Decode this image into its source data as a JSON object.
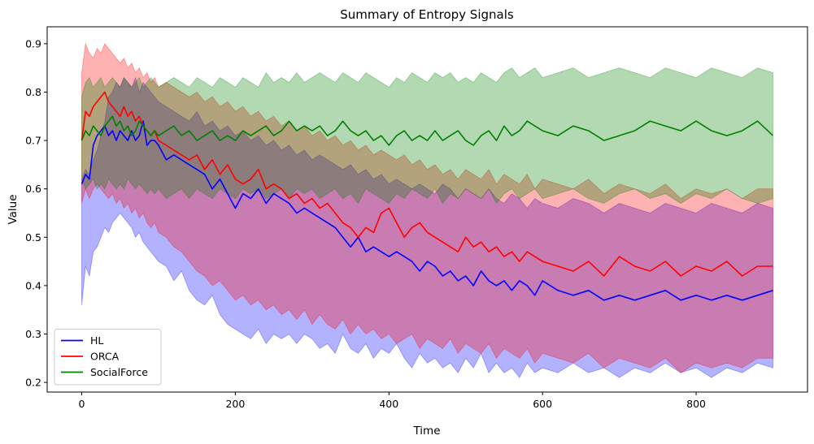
{
  "chart_data": {
    "type": "line",
    "title": "Summary of Entropy Signals",
    "xlabel": "Time",
    "ylabel": "Value",
    "xlim": [
      -45,
      945
    ],
    "ylim": [
      0.18,
      0.935
    ],
    "xticks": [
      0,
      200,
      400,
      600,
      800
    ],
    "yticks": [
      0.2,
      0.3,
      0.4,
      0.5,
      0.6,
      0.7,
      0.8,
      0.9
    ],
    "legend_position": "lower-left",
    "grid": false,
    "series": [
      {
        "name": "HL",
        "color": "#0000ff",
        "x": [
          0,
          5,
          10,
          15,
          20,
          25,
          30,
          35,
          40,
          45,
          50,
          55,
          60,
          65,
          70,
          75,
          80,
          85,
          90,
          95,
          100,
          110,
          120,
          130,
          140,
          150,
          160,
          170,
          180,
          190,
          200,
          210,
          220,
          230,
          240,
          250,
          260,
          270,
          280,
          290,
          300,
          310,
          320,
          330,
          340,
          350,
          360,
          370,
          380,
          390,
          400,
          410,
          420,
          430,
          440,
          450,
          460,
          470,
          480,
          490,
          500,
          510,
          520,
          530,
          540,
          550,
          560,
          570,
          580,
          590,
          600,
          620,
          640,
          660,
          680,
          700,
          720,
          740,
          760,
          780,
          800,
          820,
          840,
          860,
          880,
          900
        ],
        "mean": [
          0.61,
          0.63,
          0.62,
          0.69,
          0.71,
          0.72,
          0.73,
          0.71,
          0.72,
          0.7,
          0.72,
          0.71,
          0.7,
          0.72,
          0.7,
          0.71,
          0.74,
          0.69,
          0.7,
          0.7,
          0.69,
          0.66,
          0.67,
          0.66,
          0.65,
          0.64,
          0.63,
          0.6,
          0.62,
          0.59,
          0.56,
          0.59,
          0.58,
          0.6,
          0.57,
          0.59,
          0.58,
          0.57,
          0.55,
          0.56,
          0.55,
          0.54,
          0.53,
          0.52,
          0.5,
          0.48,
          0.5,
          0.47,
          0.48,
          0.47,
          0.46,
          0.47,
          0.46,
          0.45,
          0.43,
          0.45,
          0.44,
          0.42,
          0.43,
          0.41,
          0.42,
          0.4,
          0.43,
          0.41,
          0.4,
          0.41,
          0.39,
          0.41,
          0.4,
          0.38,
          0.41,
          0.39,
          0.38,
          0.39,
          0.37,
          0.38,
          0.37,
          0.38,
          0.39,
          0.37,
          0.38,
          0.37,
          0.38,
          0.37,
          0.38,
          0.39
        ],
        "lower": [
          0.36,
          0.44,
          0.42,
          0.47,
          0.48,
          0.5,
          0.52,
          0.51,
          0.53,
          0.54,
          0.55,
          0.54,
          0.53,
          0.52,
          0.5,
          0.51,
          0.49,
          0.48,
          0.47,
          0.46,
          0.45,
          0.44,
          0.41,
          0.43,
          0.39,
          0.37,
          0.36,
          0.38,
          0.34,
          0.32,
          0.31,
          0.3,
          0.29,
          0.31,
          0.28,
          0.3,
          0.29,
          0.3,
          0.28,
          0.3,
          0.29,
          0.27,
          0.28,
          0.26,
          0.3,
          0.27,
          0.26,
          0.28,
          0.25,
          0.27,
          0.26,
          0.28,
          0.25,
          0.23,
          0.26,
          0.24,
          0.25,
          0.23,
          0.24,
          0.22,
          0.25,
          0.23,
          0.26,
          0.22,
          0.24,
          0.22,
          0.23,
          0.21,
          0.24,
          0.22,
          0.23,
          0.22,
          0.24,
          0.22,
          0.23,
          0.21,
          0.23,
          0.22,
          0.24,
          0.22,
          0.23,
          0.21,
          0.23,
          0.22,
          0.24,
          0.23
        ],
        "upper": [
          0.62,
          0.64,
          0.63,
          0.66,
          0.68,
          0.71,
          0.74,
          0.79,
          0.8,
          0.82,
          0.81,
          0.83,
          0.82,
          0.81,
          0.83,
          0.8,
          0.82,
          0.81,
          0.8,
          0.79,
          0.78,
          0.77,
          0.76,
          0.75,
          0.74,
          0.76,
          0.73,
          0.74,
          0.72,
          0.73,
          0.71,
          0.72,
          0.7,
          0.71,
          0.69,
          0.7,
          0.68,
          0.69,
          0.67,
          0.68,
          0.66,
          0.67,
          0.66,
          0.65,
          0.64,
          0.65,
          0.63,
          0.64,
          0.62,
          0.63,
          0.61,
          0.62,
          0.61,
          0.6,
          0.61,
          0.6,
          0.59,
          0.61,
          0.6,
          0.58,
          0.6,
          0.59,
          0.58,
          0.6,
          0.58,
          0.57,
          0.59,
          0.58,
          0.56,
          0.58,
          0.57,
          0.56,
          0.58,
          0.57,
          0.55,
          0.57,
          0.56,
          0.55,
          0.57,
          0.56,
          0.55,
          0.57,
          0.56,
          0.55,
          0.57,
          0.56
        ]
      },
      {
        "name": "ORCA",
        "color": "#ff0000",
        "x": [
          0,
          5,
          10,
          15,
          20,
          25,
          30,
          35,
          40,
          45,
          50,
          55,
          60,
          65,
          70,
          75,
          80,
          85,
          90,
          95,
          100,
          110,
          120,
          130,
          140,
          150,
          160,
          170,
          180,
          190,
          200,
          210,
          220,
          230,
          240,
          250,
          260,
          270,
          280,
          290,
          300,
          310,
          320,
          330,
          340,
          350,
          360,
          370,
          380,
          390,
          400,
          410,
          420,
          430,
          440,
          450,
          460,
          470,
          480,
          490,
          500,
          510,
          520,
          530,
          540,
          550,
          560,
          570,
          580,
          590,
          600,
          620,
          640,
          660,
          680,
          700,
          720,
          740,
          760,
          780,
          800,
          820,
          840,
          860,
          880,
          900
        ],
        "mean": [
          0.7,
          0.76,
          0.75,
          0.77,
          0.78,
          0.79,
          0.8,
          0.78,
          0.77,
          0.76,
          0.75,
          0.77,
          0.75,
          0.76,
          0.74,
          0.75,
          0.73,
          0.72,
          0.71,
          0.72,
          0.7,
          0.69,
          0.68,
          0.67,
          0.66,
          0.67,
          0.64,
          0.66,
          0.63,
          0.65,
          0.62,
          0.61,
          0.62,
          0.64,
          0.6,
          0.61,
          0.6,
          0.58,
          0.59,
          0.57,
          0.58,
          0.56,
          0.57,
          0.55,
          0.53,
          0.52,
          0.5,
          0.52,
          0.51,
          0.55,
          0.56,
          0.53,
          0.5,
          0.52,
          0.53,
          0.51,
          0.5,
          0.49,
          0.48,
          0.47,
          0.5,
          0.48,
          0.49,
          0.47,
          0.48,
          0.46,
          0.47,
          0.45,
          0.47,
          0.46,
          0.45,
          0.44,
          0.43,
          0.45,
          0.42,
          0.46,
          0.44,
          0.43,
          0.45,
          0.42,
          0.44,
          0.43,
          0.45,
          0.42,
          0.44,
          0.44
        ],
        "lower": [
          0.57,
          0.6,
          0.58,
          0.6,
          0.61,
          0.6,
          0.59,
          0.58,
          0.59,
          0.57,
          0.58,
          0.56,
          0.57,
          0.55,
          0.56,
          0.54,
          0.55,
          0.53,
          0.52,
          0.53,
          0.51,
          0.5,
          0.48,
          0.47,
          0.45,
          0.43,
          0.42,
          0.4,
          0.41,
          0.39,
          0.37,
          0.38,
          0.36,
          0.37,
          0.35,
          0.36,
          0.34,
          0.35,
          0.33,
          0.35,
          0.32,
          0.34,
          0.32,
          0.31,
          0.33,
          0.3,
          0.32,
          0.3,
          0.31,
          0.29,
          0.3,
          0.28,
          0.29,
          0.3,
          0.27,
          0.29,
          0.28,
          0.27,
          0.29,
          0.26,
          0.28,
          0.27,
          0.26,
          0.28,
          0.25,
          0.27,
          0.26,
          0.25,
          0.27,
          0.24,
          0.26,
          0.25,
          0.24,
          0.26,
          0.23,
          0.25,
          0.24,
          0.23,
          0.25,
          0.22,
          0.24,
          0.23,
          0.24,
          0.23,
          0.25,
          0.25
        ],
        "upper": [
          0.84,
          0.9,
          0.88,
          0.87,
          0.89,
          0.88,
          0.9,
          0.89,
          0.88,
          0.87,
          0.86,
          0.87,
          0.85,
          0.86,
          0.84,
          0.85,
          0.83,
          0.84,
          0.82,
          0.83,
          0.81,
          0.82,
          0.81,
          0.8,
          0.79,
          0.8,
          0.78,
          0.79,
          0.77,
          0.78,
          0.76,
          0.77,
          0.75,
          0.76,
          0.74,
          0.75,
          0.73,
          0.74,
          0.72,
          0.73,
          0.71,
          0.72,
          0.7,
          0.71,
          0.69,
          0.7,
          0.68,
          0.69,
          0.67,
          0.68,
          0.67,
          0.66,
          0.67,
          0.65,
          0.66,
          0.64,
          0.65,
          0.63,
          0.64,
          0.62,
          0.64,
          0.63,
          0.62,
          0.64,
          0.61,
          0.63,
          0.62,
          0.61,
          0.63,
          0.6,
          0.62,
          0.61,
          0.6,
          0.62,
          0.59,
          0.61,
          0.6,
          0.59,
          0.61,
          0.58,
          0.6,
          0.59,
          0.6,
          0.58,
          0.6,
          0.6
        ]
      },
      {
        "name": "SocialForce",
        "color": "#008000",
        "x": [
          0,
          5,
          10,
          15,
          20,
          25,
          30,
          35,
          40,
          45,
          50,
          55,
          60,
          65,
          70,
          75,
          80,
          85,
          90,
          95,
          100,
          110,
          120,
          130,
          140,
          150,
          160,
          170,
          180,
          190,
          200,
          210,
          220,
          230,
          240,
          250,
          260,
          270,
          280,
          290,
          300,
          310,
          320,
          330,
          340,
          350,
          360,
          370,
          380,
          390,
          400,
          410,
          420,
          430,
          440,
          450,
          460,
          470,
          480,
          490,
          500,
          510,
          520,
          530,
          540,
          550,
          560,
          570,
          580,
          590,
          600,
          620,
          640,
          660,
          680,
          700,
          720,
          740,
          760,
          780,
          800,
          820,
          840,
          860,
          880,
          900
        ],
        "mean": [
          0.7,
          0.72,
          0.71,
          0.73,
          0.72,
          0.71,
          0.73,
          0.74,
          0.75,
          0.73,
          0.74,
          0.72,
          0.73,
          0.71,
          0.72,
          0.74,
          0.73,
          0.72,
          0.71,
          0.72,
          0.71,
          0.72,
          0.73,
          0.71,
          0.72,
          0.7,
          0.71,
          0.72,
          0.7,
          0.71,
          0.7,
          0.72,
          0.71,
          0.72,
          0.73,
          0.71,
          0.72,
          0.74,
          0.72,
          0.73,
          0.72,
          0.73,
          0.71,
          0.72,
          0.74,
          0.72,
          0.71,
          0.72,
          0.7,
          0.71,
          0.69,
          0.71,
          0.72,
          0.7,
          0.71,
          0.7,
          0.72,
          0.7,
          0.71,
          0.72,
          0.7,
          0.69,
          0.71,
          0.72,
          0.7,
          0.73,
          0.71,
          0.72,
          0.74,
          0.73,
          0.72,
          0.71,
          0.73,
          0.72,
          0.7,
          0.71,
          0.72,
          0.74,
          0.73,
          0.72,
          0.74,
          0.72,
          0.71,
          0.72,
          0.74,
          0.71
        ],
        "lower": [
          0.62,
          0.6,
          0.61,
          0.62,
          0.6,
          0.61,
          0.6,
          0.62,
          0.61,
          0.6,
          0.61,
          0.6,
          0.62,
          0.61,
          0.6,
          0.61,
          0.6,
          0.59,
          0.6,
          0.59,
          0.6,
          0.58,
          0.59,
          0.6,
          0.58,
          0.6,
          0.59,
          0.58,
          0.6,
          0.59,
          0.58,
          0.6,
          0.59,
          0.6,
          0.58,
          0.59,
          0.6,
          0.58,
          0.6,
          0.59,
          0.6,
          0.58,
          0.59,
          0.6,
          0.58,
          0.59,
          0.57,
          0.6,
          0.59,
          0.58,
          0.57,
          0.59,
          0.58,
          0.6,
          0.59,
          0.58,
          0.6,
          0.57,
          0.59,
          0.58,
          0.6,
          0.59,
          0.58,
          0.6,
          0.57,
          0.59,
          0.6,
          0.58,
          0.59,
          0.6,
          0.58,
          0.59,
          0.6,
          0.58,
          0.57,
          0.59,
          0.6,
          0.58,
          0.59,
          0.57,
          0.59,
          0.58,
          0.6,
          0.58,
          0.57,
          0.58
        ],
        "upper": [
          0.79,
          0.82,
          0.83,
          0.81,
          0.82,
          0.83,
          0.81,
          0.82,
          0.83,
          0.82,
          0.81,
          0.83,
          0.82,
          0.81,
          0.82,
          0.83,
          0.81,
          0.82,
          0.83,
          0.82,
          0.81,
          0.82,
          0.83,
          0.82,
          0.81,
          0.83,
          0.82,
          0.81,
          0.83,
          0.82,
          0.81,
          0.83,
          0.82,
          0.81,
          0.84,
          0.82,
          0.83,
          0.82,
          0.84,
          0.82,
          0.83,
          0.84,
          0.83,
          0.82,
          0.84,
          0.83,
          0.82,
          0.84,
          0.83,
          0.82,
          0.81,
          0.83,
          0.82,
          0.84,
          0.83,
          0.82,
          0.84,
          0.83,
          0.84,
          0.82,
          0.83,
          0.82,
          0.84,
          0.83,
          0.82,
          0.84,
          0.85,
          0.83,
          0.84,
          0.85,
          0.83,
          0.84,
          0.85,
          0.83,
          0.84,
          0.85,
          0.84,
          0.83,
          0.85,
          0.84,
          0.83,
          0.85,
          0.84,
          0.83,
          0.85,
          0.84
        ]
      }
    ]
  }
}
